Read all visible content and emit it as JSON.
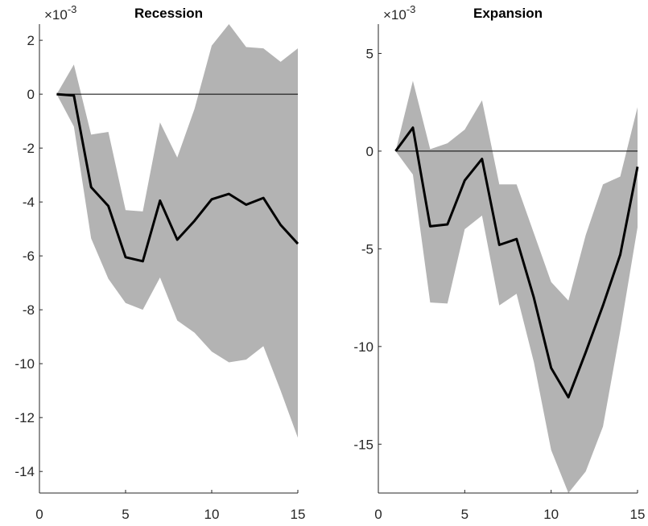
{
  "chart_data": [
    {
      "type": "line",
      "title": "Recession",
      "exponent_label": "×10",
      "exponent_power": "-3",
      "xlim": [
        0,
        15
      ],
      "ylim": [
        -14.8,
        2.6
      ],
      "xticks": [
        0,
        5,
        10,
        15
      ],
      "xtick_labels": [
        "0",
        "5",
        "10",
        "15"
      ],
      "yticks": [
        2,
        0,
        -2,
        -4,
        -6,
        -8,
        -10,
        -12,
        -14
      ],
      "ytick_labels": [
        "2",
        "0",
        "-2",
        "-4",
        "-6",
        "-8",
        "-10",
        "-12",
        "-14"
      ],
      "x": [
        1,
        2,
        3,
        4,
        5,
        6,
        7,
        8,
        9,
        10,
        11,
        12,
        13,
        14,
        15
      ],
      "series": [
        {
          "values": [
            0.0,
            -0.05,
            -3.45,
            -4.15,
            -6.05,
            -6.2,
            -3.95,
            -5.4,
            -4.7,
            -3.9,
            -3.7,
            -4.1,
            -3.85,
            -4.85,
            -5.55
          ]
        }
      ],
      "band_upper": [
        0.0,
        1.1,
        -1.5,
        -1.4,
        -4.3,
        -4.35,
        -1.05,
        -2.35,
        -0.55,
        1.8,
        2.6,
        1.75,
        1.7,
        1.2,
        1.7
      ],
      "band_lower": [
        0.0,
        -1.2,
        -5.35,
        -6.85,
        -7.75,
        -8.0,
        -6.8,
        -8.4,
        -8.85,
        -9.55,
        -9.95,
        -9.85,
        -9.35,
        -11.0,
        -12.75
      ],
      "zero_line": 0,
      "colors": {
        "band": "#b3b3b3",
        "line": "#000000",
        "zero": "#000000",
        "axis": "#262626"
      }
    },
    {
      "type": "line",
      "title": "Expansion",
      "exponent_label": "×10",
      "exponent_power": "-3",
      "xlim": [
        0,
        15
      ],
      "ylim": [
        -17.5,
        6.5
      ],
      "xticks": [
        0,
        5,
        10,
        15
      ],
      "xtick_labels": [
        "0",
        "5",
        "10",
        "15"
      ],
      "yticks": [
        5,
        0,
        -5,
        -10,
        -15
      ],
      "ytick_labels": [
        "5",
        "0",
        "-5",
        "-10",
        "-15"
      ],
      "x": [
        1,
        2,
        3,
        4,
        5,
        6,
        7,
        8,
        9,
        10,
        11,
        12,
        13,
        14,
        15
      ],
      "series": [
        {
          "values": [
            0.0,
            1.2,
            -3.85,
            -3.75,
            -1.5,
            -0.4,
            -4.8,
            -4.5,
            -7.5,
            -11.1,
            -12.6,
            -10.3,
            -7.9,
            -5.3,
            -0.8
          ]
        }
      ],
      "band_upper": [
        0.0,
        3.6,
        0.1,
        0.4,
        1.1,
        2.6,
        -1.7,
        -1.7,
        -4.2,
        -6.7,
        -7.65,
        -4.3,
        -1.7,
        -1.3,
        2.25
      ],
      "band_lower": [
        0.0,
        -1.2,
        -7.75,
        -7.8,
        -4.0,
        -3.3,
        -7.9,
        -7.3,
        -10.8,
        -15.3,
        -17.5,
        -16.4,
        -14.1,
        -9.2,
        -3.9
      ],
      "zero_line": 0,
      "colors": {
        "band": "#b3b3b3",
        "line": "#000000",
        "zero": "#000000",
        "axis": "#262626"
      }
    }
  ]
}
